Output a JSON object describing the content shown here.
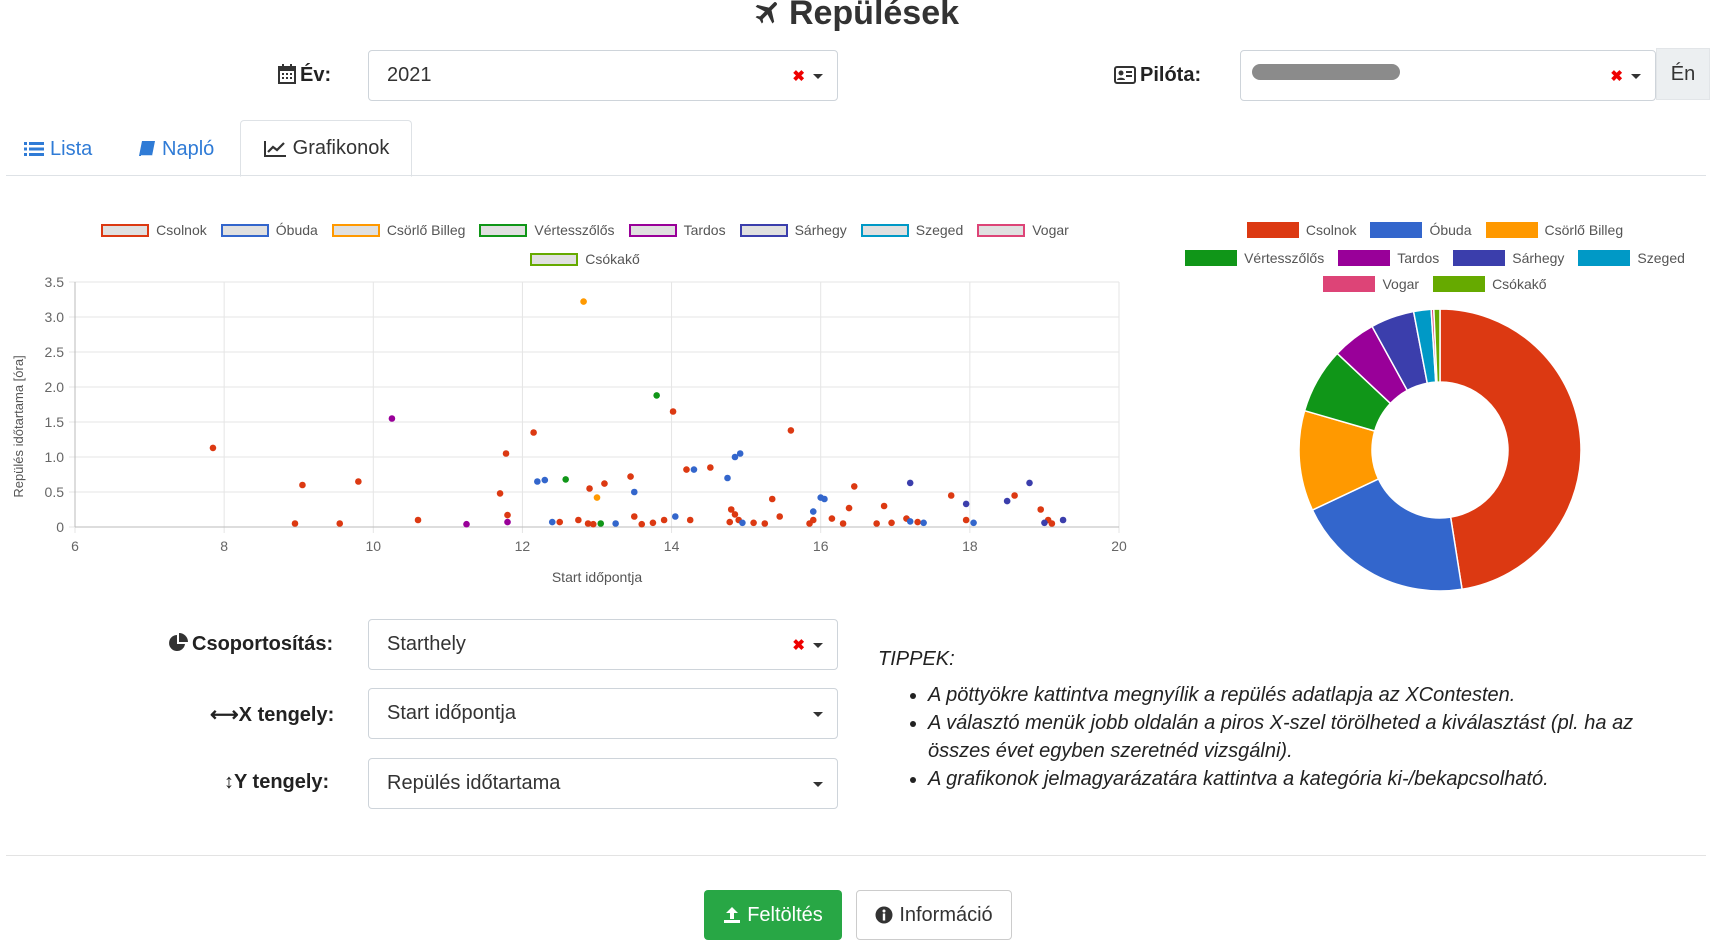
{
  "title": "Repülések",
  "filters": {
    "year_label": "Év:",
    "year_value": "2021",
    "pilot_label": "Pilóta:",
    "me_button": "Én"
  },
  "tabs": [
    {
      "label": "Lista",
      "icon": "list-icon"
    },
    {
      "label": "Napló",
      "icon": "book-icon"
    },
    {
      "label": "Grafikonok",
      "icon": "line-chart-icon",
      "active": true
    }
  ],
  "colors": {
    "Csolnok": "#dc3912",
    "Óbuda": "#3366cc",
    "Csörlő Billeg": "#ff9900",
    "Vértesszőlős": "#109618",
    "Tardos": "#990099",
    "Sárhegy": "#3b3eac",
    "Szeged": "#0099c6",
    "Vogar": "#dd4477",
    "Csókakő": "#66aa00"
  },
  "chart_data": [
    {
      "type": "scatter",
      "xlabel": "Start időpontja",
      "ylabel": "Repülés időtartama [óra]",
      "xlim": [
        6,
        20
      ],
      "ylim": [
        0,
        3.5
      ],
      "xticks": [
        6,
        8,
        10,
        12,
        14,
        16,
        18,
        20
      ],
      "yticks": [
        0,
        0.5,
        1.0,
        1.5,
        2.0,
        2.5,
        3.0,
        3.5
      ],
      "ytick_labels": [
        "0",
        "0.5",
        "1.0",
        "1.5",
        "2.0",
        "2.5",
        "3.0",
        "3.5"
      ],
      "grid": true,
      "legend": "top",
      "series": [
        {
          "name": "Csolnok",
          "points": [
            [
              7.85,
              1.13
            ],
            [
              8.95,
              0.05
            ],
            [
              9.05,
              0.6
            ],
            [
              9.55,
              0.05
            ],
            [
              9.8,
              0.65
            ],
            [
              10.6,
              0.1
            ],
            [
              11.7,
              0.48
            ],
            [
              11.78,
              1.05
            ],
            [
              11.8,
              0.17
            ],
            [
              12.15,
              1.35
            ],
            [
              12.5,
              0.07
            ],
            [
              12.75,
              0.1
            ],
            [
              12.88,
              0.05
            ],
            [
              12.9,
              0.55
            ],
            [
              12.95,
              0.04
            ],
            [
              13.1,
              0.62
            ],
            [
              13.45,
              0.72
            ],
            [
              13.5,
              0.15
            ],
            [
              13.6,
              0.04
            ],
            [
              13.75,
              0.06
            ],
            [
              13.9,
              0.1
            ],
            [
              14.02,
              1.65
            ],
            [
              14.2,
              0.82
            ],
            [
              14.25,
              0.1
            ],
            [
              14.52,
              0.85
            ],
            [
              14.78,
              0.07
            ],
            [
              14.8,
              0.25
            ],
            [
              14.85,
              0.18
            ],
            [
              14.9,
              0.1
            ],
            [
              15.1,
              0.06
            ],
            [
              15.25,
              0.05
            ],
            [
              15.35,
              0.4
            ],
            [
              15.45,
              0.15
            ],
            [
              15.6,
              1.38
            ],
            [
              15.85,
              0.05
            ],
            [
              15.9,
              0.1
            ],
            [
              16.15,
              0.12
            ],
            [
              16.3,
              0.05
            ],
            [
              16.38,
              0.27
            ],
            [
              16.45,
              0.58
            ],
            [
              16.75,
              0.05
            ],
            [
              16.85,
              0.3
            ],
            [
              16.95,
              0.06
            ],
            [
              17.15,
              0.12
            ],
            [
              17.3,
              0.07
            ],
            [
              17.75,
              0.45
            ],
            [
              17.95,
              0.1
            ],
            [
              18.6,
              0.45
            ],
            [
              18.95,
              0.25
            ],
            [
              19.05,
              0.1
            ],
            [
              19.1,
              0.05
            ]
          ]
        },
        {
          "name": "Óbuda",
          "points": [
            [
              12.2,
              0.65
            ],
            [
              12.3,
              0.67
            ],
            [
              12.4,
              0.07
            ],
            [
              13.25,
              0.05
            ],
            [
              13.5,
              0.5
            ],
            [
              14.05,
              0.15
            ],
            [
              14.3,
              0.82
            ],
            [
              14.75,
              0.7
            ],
            [
              14.85,
              1.0
            ],
            [
              14.92,
              1.05
            ],
            [
              14.95,
              0.06
            ],
            [
              15.9,
              0.22
            ],
            [
              16.0,
              0.42
            ],
            [
              16.05,
              0.4
            ],
            [
              17.2,
              0.08
            ],
            [
              17.38,
              0.06
            ],
            [
              18.05,
              0.06
            ]
          ]
        },
        {
          "name": "Csörlő Billeg",
          "points": [
            [
              12.82,
              3.22
            ],
            [
              13.0,
              0.42
            ]
          ]
        },
        {
          "name": "Vértesszőlős",
          "points": [
            [
              12.58,
              0.68
            ],
            [
              13.05,
              0.05
            ],
            [
              13.8,
              1.88
            ]
          ]
        },
        {
          "name": "Tardos",
          "points": [
            [
              10.25,
              1.55
            ],
            [
              11.25,
              0.04
            ],
            [
              11.8,
              0.07
            ]
          ]
        },
        {
          "name": "Sárhegy",
          "points": [
            [
              17.2,
              0.63
            ],
            [
              17.95,
              0.33
            ],
            [
              18.5,
              0.37
            ],
            [
              18.8,
              0.63
            ],
            [
              19.0,
              0.06
            ],
            [
              19.25,
              0.1
            ]
          ]
        },
        {
          "name": "Szeged",
          "points": []
        },
        {
          "name": "Vogar",
          "points": []
        },
        {
          "name": "Csókakő",
          "points": []
        }
      ]
    },
    {
      "type": "pie",
      "legend": "top",
      "categories": [
        "Csolnok",
        "Óbuda",
        "Csörlő Billeg",
        "Vértesszőlős",
        "Tardos",
        "Sárhegy",
        "Szeged",
        "Vogar",
        "Csókakő"
      ],
      "values": [
        47.5,
        20.5,
        11.5,
        7.5,
        5,
        5,
        2,
        0.3,
        0.7
      ]
    }
  ],
  "groupby": {
    "label": "Csoportosítás:",
    "value": "Starthely"
  },
  "xaxis_select": {
    "label": "X tengely:",
    "value": "Start időpontja"
  },
  "yaxis_select": {
    "label": "Y tengely:",
    "value": "Repülés időtartama"
  },
  "tips": {
    "title": "TIPPEK:",
    "items": [
      "A pöttyökre kattintva megnyílik a repülés adatlapja az XContesten.",
      "A választó menük jobb oldalán a piros X-szel törölheted a kiválasztást (pl. ha az összes évet egyben szeretnéd vizsgálni).",
      "A grafikonok jelmagyarázatára kattintva a kategória ki-/bekapcsolható."
    ]
  },
  "buttons": {
    "upload": "Feltöltés",
    "info": "Információ"
  }
}
